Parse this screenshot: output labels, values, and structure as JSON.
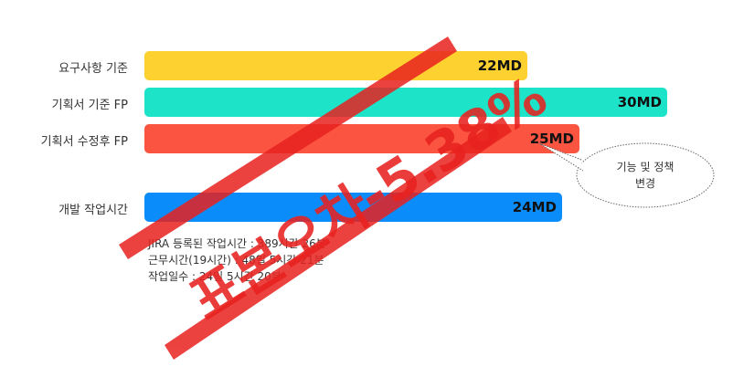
{
  "chart_data": {
    "type": "bar",
    "orientation": "horizontal",
    "categories": [
      "요구사항 기준",
      "기획서 기준 FP",
      "기획서 수정후 FP",
      "개발 작업시간"
    ],
    "values": [
      22,
      30,
      25,
      24
    ],
    "value_labels": [
      "22MD",
      "30MD",
      "25MD",
      "24MD"
    ],
    "colors": [
      "#fdd12f",
      "#1de3c9",
      "#fb5441",
      "#0a8dfb"
    ],
    "unit": "MD"
  },
  "notes": [
    "JIRA 등록된 작업시간 : 389시간 26분",
    "근무시간(19시간) : 48일 5시간 21분",
    "작업일수 : 24일 5시간 20분"
  ],
  "callout": {
    "line1": "기능 및 정책",
    "line2": "변경"
  },
  "stamp": {
    "text": "표본오차-5.38%",
    "color": "#e8221f"
  }
}
